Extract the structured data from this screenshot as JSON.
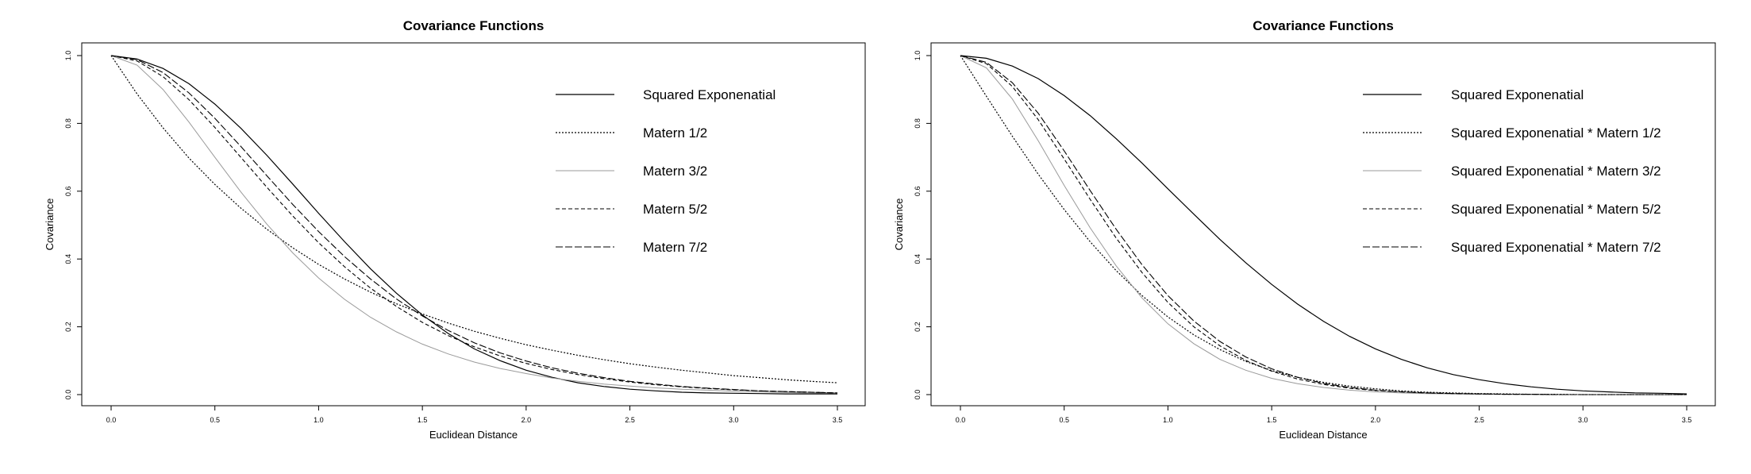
{
  "chart_data": [
    {
      "type": "line",
      "title": "Covariance Functions",
      "xlabel": "Euclidean Distance",
      "ylabel": "Covariance",
      "xlim": [
        0,
        3.5
      ],
      "ylim": [
        0,
        1
      ],
      "xticks": [
        "0.0",
        "0.5",
        "1.0",
        "1.5",
        "2.0",
        "2.5",
        "3.0",
        "3.5"
      ],
      "yticks": [
        "0.0",
        "0.2",
        "0.4",
        "0.6",
        "0.8",
        "1.0"
      ],
      "grid": false,
      "legend_position": "top-right",
      "x": [
        0,
        0.125,
        0.25,
        0.375,
        0.5,
        0.625,
        0.75,
        0.875,
        1.0,
        1.125,
        1.25,
        1.375,
        1.5,
        1.625,
        1.75,
        1.875,
        2.0,
        2.125,
        2.25,
        2.375,
        2.5,
        2.625,
        2.75,
        2.875,
        3.0,
        3.125,
        3.25,
        3.375,
        3.5
      ],
      "series": [
        {
          "name": "Squared Exponenatial",
          "dash": "solid",
          "color": "#000000",
          "values": [
            1.0,
            0.99,
            0.962,
            0.917,
            0.857,
            0.786,
            0.706,
            0.621,
            0.535,
            0.451,
            0.371,
            0.299,
            0.235,
            0.18,
            0.135,
            0.1,
            0.072,
            0.051,
            0.035,
            0.024,
            0.016,
            0.011,
            0.007,
            0.005,
            0.004,
            0.003,
            0.002,
            0.002,
            0.002
          ]
        },
        {
          "name": "Matern 1/2",
          "dash": "dotted",
          "color": "#000000",
          "values": [
            1.0,
            0.887,
            0.787,
            0.698,
            0.62,
            0.55,
            0.488,
            0.433,
            0.384,
            0.341,
            0.302,
            0.268,
            0.238,
            0.211,
            0.187,
            0.166,
            0.147,
            0.131,
            0.116,
            0.103,
            0.091,
            0.081,
            0.072,
            0.064,
            0.056,
            0.05,
            0.044,
            0.039,
            0.035
          ]
        },
        {
          "name": "Matern 3/2",
          "dash": "light",
          "color": "#9a9a9a",
          "values": [
            1.0,
            0.972,
            0.9,
            0.804,
            0.7,
            0.598,
            0.503,
            0.418,
            0.344,
            0.281,
            0.228,
            0.185,
            0.149,
            0.12,
            0.096,
            0.077,
            0.062,
            0.049,
            0.039,
            0.031,
            0.025,
            0.02,
            0.016,
            0.013,
            0.01,
            0.008,
            0.006,
            0.005,
            0.004
          ]
        },
        {
          "name": "Matern 5/2",
          "dash": "dashed",
          "color": "#000000",
          "values": [
            1.0,
            0.984,
            0.938,
            0.87,
            0.788,
            0.7,
            0.612,
            0.527,
            0.448,
            0.377,
            0.314,
            0.26,
            0.213,
            0.174,
            0.141,
            0.114,
            0.092,
            0.074,
            0.059,
            0.047,
            0.037,
            0.029,
            0.023,
            0.018,
            0.014,
            0.011,
            0.009,
            0.007,
            0.005
          ]
        },
        {
          "name": "Matern 7/2",
          "dash": "longdash",
          "color": "#000000",
          "values": [
            1.0,
            0.988,
            0.95,
            0.89,
            0.815,
            0.732,
            0.646,
            0.561,
            0.481,
            0.407,
            0.341,
            0.282,
            0.232,
            0.189,
            0.153,
            0.123,
            0.099,
            0.079,
            0.063,
            0.05,
            0.039,
            0.031,
            0.024,
            0.019,
            0.015,
            0.011,
            0.009,
            0.007,
            0.005
          ]
        }
      ]
    },
    {
      "type": "line",
      "title": "Covariance Functions",
      "xlabel": "Euclidean Distance",
      "ylabel": "Covariance",
      "xlim": [
        0,
        3.5
      ],
      "ylim": [
        0,
        1
      ],
      "xticks": [
        "0.0",
        "0.5",
        "1.0",
        "1.5",
        "2.0",
        "2.5",
        "3.0",
        "3.5"
      ],
      "yticks": [
        "0.0",
        "0.2",
        "0.4",
        "0.6",
        "0.8",
        "1.0"
      ],
      "grid": false,
      "legend_position": "top-right",
      "x": [
        0,
        0.125,
        0.25,
        0.375,
        0.5,
        0.625,
        0.75,
        0.875,
        1.0,
        1.125,
        1.25,
        1.375,
        1.5,
        1.625,
        1.75,
        1.875,
        2.0,
        2.125,
        2.25,
        2.375,
        2.5,
        2.625,
        2.75,
        2.875,
        3.0,
        3.125,
        3.25,
        3.375,
        3.5
      ],
      "series": [
        {
          "name": "Squared Exponenatial",
          "dash": "solid",
          "color": "#000000",
          "values": [
            1.0,
            0.992,
            0.969,
            0.932,
            0.882,
            0.823,
            0.755,
            0.683,
            0.607,
            0.532,
            0.458,
            0.389,
            0.325,
            0.267,
            0.216,
            0.172,
            0.135,
            0.104,
            0.079,
            0.059,
            0.044,
            0.032,
            0.023,
            0.016,
            0.011,
            0.008,
            0.005,
            0.004,
            0.002
          ]
        },
        {
          "name": "Squared Exponenatial * Matern 1/2",
          "dash": "dotted",
          "color": "#000000",
          "values": [
            1.0,
            0.88,
            0.762,
            0.65,
            0.546,
            0.451,
            0.366,
            0.292,
            0.229,
            0.176,
            0.133,
            0.098,
            0.071,
            0.051,
            0.036,
            0.025,
            0.017,
            0.011,
            0.007,
            0.005,
            0.003,
            0.002,
            0.001,
            0.001,
            0.0,
            0.0,
            0.0,
            0.0,
            0.0
          ]
        },
        {
          "name": "Squared Exponenatial * Matern 3/2",
          "dash": "light",
          "color": "#9a9a9a",
          "values": [
            1.0,
            0.964,
            0.872,
            0.749,
            0.617,
            0.492,
            0.38,
            0.285,
            0.209,
            0.15,
            0.104,
            0.072,
            0.048,
            0.032,
            0.021,
            0.013,
            0.008,
            0.005,
            0.003,
            0.002,
            0.001,
            0.001,
            0.0,
            0.0,
            0.0,
            0.0,
            0.0,
            0.0,
            0.0
          ]
        },
        {
          "name": "Squared Exponenatial * Matern 5/2",
          "dash": "dashed",
          "color": "#000000",
          "values": [
            1.0,
            0.976,
            0.909,
            0.811,
            0.695,
            0.576,
            0.462,
            0.36,
            0.272,
            0.2,
            0.144,
            0.101,
            0.069,
            0.046,
            0.03,
            0.019,
            0.012,
            0.008,
            0.005,
            0.003,
            0.002,
            0.001,
            0.001,
            0.0,
            0.0,
            0.0,
            0.0,
            0.0,
            0.0
          ]
        },
        {
          "name": "Squared Exponenatial * Matern 7/2",
          "dash": "longdash",
          "color": "#000000",
          "values": [
            1.0,
            0.98,
            0.92,
            0.83,
            0.719,
            0.602,
            0.488,
            0.383,
            0.292,
            0.217,
            0.157,
            0.111,
            0.076,
            0.051,
            0.033,
            0.021,
            0.013,
            0.008,
            0.005,
            0.003,
            0.002,
            0.001,
            0.001,
            0.0,
            0.0,
            0.0,
            0.0,
            0.0,
            0.0
          ]
        }
      ]
    }
  ]
}
